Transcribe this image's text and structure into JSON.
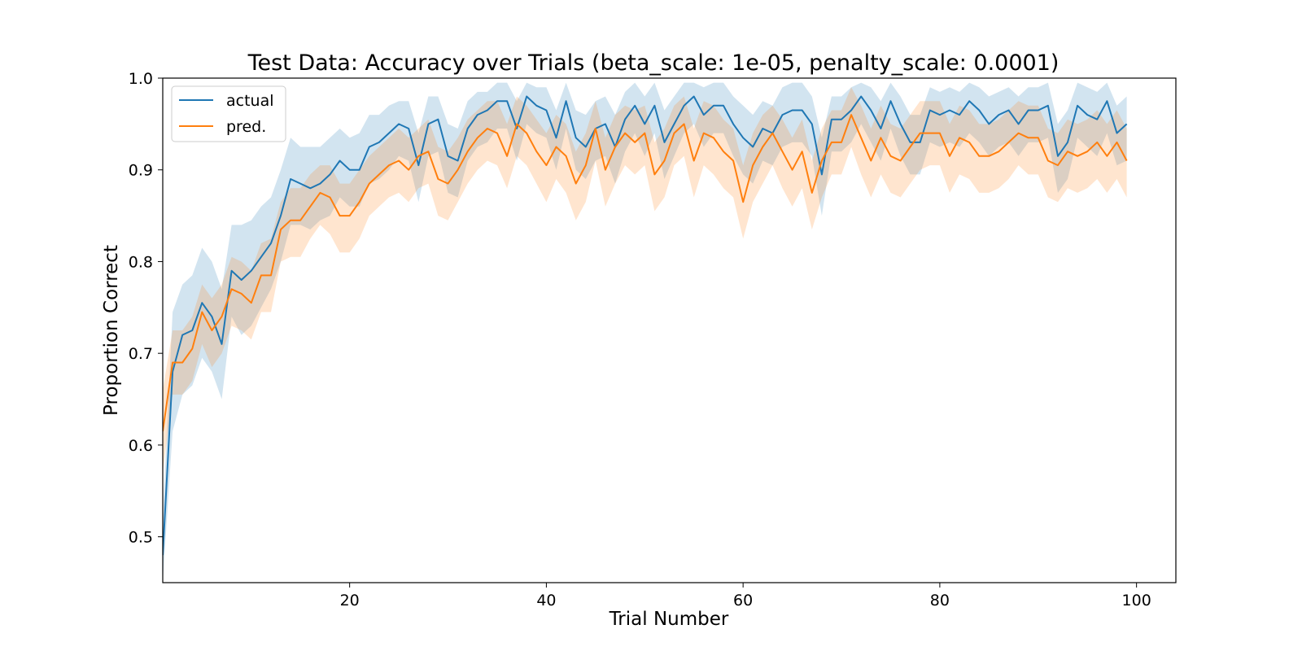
{
  "chart_data": {
    "type": "line",
    "title": "Test Data: Accuracy over Trials (beta_scale: 1e-05, penalty_scale: 0.0001)",
    "xlabel": "Trial Number",
    "ylabel": "Proportion Correct",
    "xlim": [
      1,
      104
    ],
    "ylim": [
      0.45,
      1.0
    ],
    "xticks": [
      20,
      40,
      60,
      80,
      100
    ],
    "yticks": [
      0.5,
      0.6,
      0.7,
      0.8,
      0.9,
      1.0
    ],
    "grid": false,
    "legend_position": "top-left",
    "x": [
      1,
      2,
      3,
      4,
      5,
      6,
      7,
      8,
      9,
      10,
      11,
      12,
      13,
      14,
      15,
      16,
      17,
      18,
      19,
      20,
      21,
      22,
      23,
      24,
      25,
      26,
      27,
      28,
      29,
      30,
      31,
      32,
      33,
      34,
      35,
      36,
      37,
      38,
      39,
      40,
      41,
      42,
      43,
      44,
      45,
      46,
      47,
      48,
      49,
      50,
      51,
      52,
      53,
      54,
      55,
      56,
      57,
      58,
      59,
      60,
      61,
      62,
      63,
      64,
      65,
      66,
      67,
      68,
      69,
      70,
      71,
      72,
      73,
      74,
      75,
      76,
      77,
      78,
      79,
      80,
      81,
      82,
      83,
      84,
      85,
      86,
      87,
      88,
      89,
      90,
      91,
      92,
      93,
      94,
      95,
      96,
      97,
      98,
      99
    ],
    "series": [
      {
        "name": "actual",
        "color": "#1f77b4",
        "values": [
          0.48,
          0.68,
          0.72,
          0.725,
          0.755,
          0.74,
          0.71,
          0.79,
          0.78,
          0.79,
          0.805,
          0.82,
          0.85,
          0.89,
          0.885,
          0.88,
          0.885,
          0.895,
          0.91,
          0.9,
          0.9,
          0.925,
          0.93,
          0.94,
          0.95,
          0.945,
          0.905,
          0.95,
          0.955,
          0.915,
          0.91,
          0.945,
          0.96,
          0.965,
          0.975,
          0.975,
          0.945,
          0.98,
          0.97,
          0.965,
          0.935,
          0.975,
          0.935,
          0.925,
          0.945,
          0.95,
          0.925,
          0.955,
          0.97,
          0.95,
          0.97,
          0.93,
          0.95,
          0.97,
          0.98,
          0.96,
          0.97,
          0.97,
          0.95,
          0.935,
          0.925,
          0.945,
          0.94,
          0.96,
          0.965,
          0.965,
          0.95,
          0.895,
          0.955,
          0.955,
          0.965,
          0.98,
          0.965,
          0.945,
          0.975,
          0.95,
          0.93,
          0.93,
          0.965,
          0.96,
          0.965,
          0.96,
          0.975,
          0.965,
          0.95,
          0.96,
          0.965,
          0.95,
          0.965,
          0.965,
          0.97,
          0.915,
          0.93,
          0.97,
          0.96,
          0.955,
          0.975,
          0.94,
          0.95
        ],
        "band_lower": [
          0.45,
          0.615,
          0.655,
          0.665,
          0.695,
          0.68,
          0.65,
          0.74,
          0.72,
          0.73,
          0.75,
          0.77,
          0.8,
          0.84,
          0.84,
          0.835,
          0.845,
          0.85,
          0.87,
          0.86,
          0.86,
          0.885,
          0.89,
          0.9,
          0.915,
          0.91,
          0.865,
          0.915,
          0.92,
          0.875,
          0.87,
          0.91,
          0.925,
          0.93,
          0.945,
          0.945,
          0.91,
          0.95,
          0.94,
          0.935,
          0.9,
          0.945,
          0.9,
          0.89,
          0.91,
          0.915,
          0.885,
          0.92,
          0.94,
          0.915,
          0.94,
          0.89,
          0.915,
          0.94,
          0.95,
          0.925,
          0.94,
          0.94,
          0.915,
          0.895,
          0.885,
          0.91,
          0.905,
          0.925,
          0.93,
          0.93,
          0.915,
          0.85,
          0.92,
          0.92,
          0.93,
          0.95,
          0.93,
          0.91,
          0.945,
          0.915,
          0.895,
          0.895,
          0.93,
          0.925,
          0.93,
          0.925,
          0.94,
          0.93,
          0.915,
          0.925,
          0.93,
          0.915,
          0.93,
          0.93,
          0.935,
          0.875,
          0.89,
          0.935,
          0.925,
          0.915,
          0.94,
          0.905,
          0.91
        ],
        "band_upper": [
          0.52,
          0.745,
          0.775,
          0.785,
          0.815,
          0.8,
          0.77,
          0.84,
          0.84,
          0.845,
          0.86,
          0.87,
          0.9,
          0.935,
          0.925,
          0.925,
          0.925,
          0.935,
          0.945,
          0.935,
          0.94,
          0.96,
          0.96,
          0.97,
          0.975,
          0.975,
          0.94,
          0.98,
          0.98,
          0.95,
          0.945,
          0.975,
          0.985,
          0.985,
          0.995,
          0.995,
          0.975,
          0.995,
          0.99,
          0.99,
          0.965,
          0.995,
          0.965,
          0.96,
          0.975,
          0.98,
          0.96,
          0.985,
          0.995,
          0.98,
          0.995,
          0.965,
          0.98,
          0.995,
          0.995,
          0.99,
          0.995,
          0.995,
          0.98,
          0.97,
          0.96,
          0.975,
          0.97,
          0.99,
          0.995,
          0.995,
          0.98,
          0.935,
          0.98,
          0.98,
          0.99,
          0.995,
          0.99,
          0.975,
          0.995,
          0.98,
          0.96,
          0.96,
          0.99,
          0.985,
          0.99,
          0.985,
          0.995,
          0.99,
          0.98,
          0.985,
          0.99,
          0.98,
          0.99,
          0.99,
          0.995,
          0.95,
          0.965,
          0.995,
          0.99,
          0.985,
          0.995,
          0.97,
          0.98
        ]
      },
      {
        "name": "pred.",
        "color": "#ff7f0e",
        "values": [
          0.615,
          0.69,
          0.69,
          0.705,
          0.745,
          0.725,
          0.74,
          0.77,
          0.765,
          0.755,
          0.785,
          0.785,
          0.835,
          0.845,
          0.845,
          0.86,
          0.875,
          0.87,
          0.85,
          0.85,
          0.865,
          0.885,
          0.895,
          0.905,
          0.91,
          0.9,
          0.915,
          0.92,
          0.89,
          0.885,
          0.9,
          0.92,
          0.935,
          0.945,
          0.94,
          0.915,
          0.95,
          0.94,
          0.92,
          0.905,
          0.925,
          0.915,
          0.885,
          0.905,
          0.945,
          0.9,
          0.925,
          0.94,
          0.93,
          0.94,
          0.895,
          0.91,
          0.94,
          0.95,
          0.91,
          0.94,
          0.935,
          0.92,
          0.91,
          0.865,
          0.905,
          0.925,
          0.94,
          0.92,
          0.9,
          0.92,
          0.875,
          0.91,
          0.93,
          0.93,
          0.96,
          0.935,
          0.91,
          0.935,
          0.915,
          0.91,
          0.925,
          0.94,
          0.94,
          0.94,
          0.915,
          0.935,
          0.93,
          0.915,
          0.915,
          0.92,
          0.93,
          0.94,
          0.935,
          0.935,
          0.91,
          0.905,
          0.92,
          0.915,
          0.92,
          0.93,
          0.915,
          0.93,
          0.91
        ],
        "band_lower": [
          0.57,
          0.655,
          0.655,
          0.67,
          0.71,
          0.685,
          0.7,
          0.73,
          0.725,
          0.715,
          0.745,
          0.745,
          0.8,
          0.805,
          0.805,
          0.825,
          0.84,
          0.83,
          0.81,
          0.81,
          0.825,
          0.85,
          0.86,
          0.87,
          0.875,
          0.865,
          0.88,
          0.885,
          0.85,
          0.845,
          0.865,
          0.885,
          0.9,
          0.91,
          0.905,
          0.88,
          0.915,
          0.905,
          0.885,
          0.865,
          0.89,
          0.875,
          0.845,
          0.865,
          0.91,
          0.86,
          0.885,
          0.905,
          0.895,
          0.905,
          0.855,
          0.87,
          0.905,
          0.915,
          0.87,
          0.905,
          0.895,
          0.88,
          0.87,
          0.825,
          0.865,
          0.885,
          0.905,
          0.88,
          0.86,
          0.88,
          0.835,
          0.87,
          0.895,
          0.895,
          0.925,
          0.895,
          0.87,
          0.895,
          0.875,
          0.87,
          0.885,
          0.9,
          0.905,
          0.905,
          0.875,
          0.895,
          0.89,
          0.875,
          0.875,
          0.88,
          0.89,
          0.905,
          0.895,
          0.895,
          0.87,
          0.865,
          0.88,
          0.875,
          0.88,
          0.89,
          0.875,
          0.89,
          0.87
        ],
        "band_upper": [
          0.66,
          0.725,
          0.725,
          0.74,
          0.775,
          0.76,
          0.775,
          0.805,
          0.8,
          0.79,
          0.82,
          0.825,
          0.865,
          0.88,
          0.88,
          0.895,
          0.905,
          0.905,
          0.885,
          0.885,
          0.9,
          0.915,
          0.925,
          0.935,
          0.945,
          0.935,
          0.945,
          0.955,
          0.925,
          0.92,
          0.935,
          0.955,
          0.965,
          0.975,
          0.975,
          0.95,
          0.98,
          0.97,
          0.955,
          0.94,
          0.96,
          0.95,
          0.92,
          0.94,
          0.975,
          0.935,
          0.96,
          0.97,
          0.965,
          0.97,
          0.93,
          0.945,
          0.97,
          0.98,
          0.945,
          0.975,
          0.97,
          0.955,
          0.945,
          0.905,
          0.94,
          0.96,
          0.97,
          0.955,
          0.935,
          0.955,
          0.91,
          0.945,
          0.965,
          0.965,
          0.99,
          0.97,
          0.945,
          0.97,
          0.95,
          0.945,
          0.96,
          0.975,
          0.975,
          0.975,
          0.95,
          0.97,
          0.965,
          0.95,
          0.95,
          0.955,
          0.965,
          0.975,
          0.97,
          0.97,
          0.945,
          0.94,
          0.955,
          0.95,
          0.955,
          0.965,
          0.95,
          0.965,
          0.945
        ]
      }
    ]
  }
}
